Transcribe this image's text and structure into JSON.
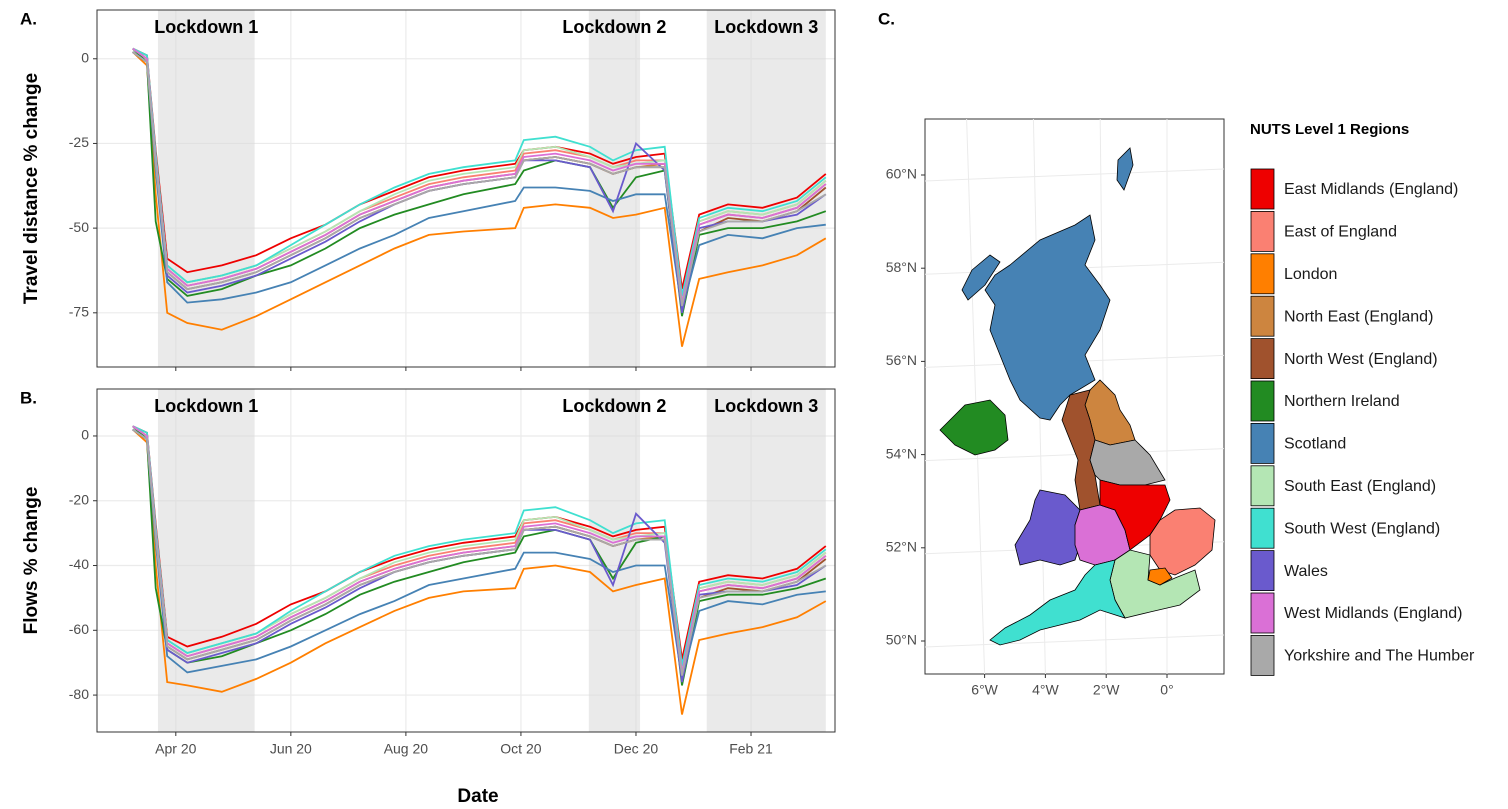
{
  "chart_data": [
    {
      "type": "line",
      "panel": "A.",
      "y_label": "Travel distance % change",
      "xlim": [
        1.63,
        14.46
      ],
      "ylim": [
        -91,
        14.4
      ],
      "yticks": [
        -75,
        -50,
        -25,
        0
      ],
      "grid": true,
      "shaded_periods": [
        {
          "label": "Lockdown 1",
          "x": [
            2.69,
            4.37
          ]
        },
        {
          "label": "Lockdown 2",
          "x": [
            10.18,
            11.07
          ]
        },
        {
          "label": "Lockdown 3",
          "x": [
            12.23,
            14.3
          ]
        }
      ],
      "x": [
        2.25,
        2.5,
        2.65,
        2.85,
        3.2,
        3.8,
        4.4,
        5.0,
        5.6,
        6.2,
        6.8,
        7.4,
        8.0,
        8.9,
        9.05,
        9.6,
        10.2,
        10.6,
        11.0,
        11.5,
        11.8,
        12.1,
        12.6,
        13.2,
        13.8,
        14.3
      ],
      "series": [
        {
          "name": "East Midlands (England)",
          "color": "#ee0000",
          "values": [
            3,
            1,
            -27,
            -59,
            -63,
            -61,
            -58,
            -53,
            -49,
            -43,
            -39,
            -35,
            -33,
            -31,
            -27,
            -26,
            -28,
            -31,
            -29,
            -28,
            -68,
            -46,
            -43,
            -44,
            -41,
            -34
          ]
        },
        {
          "name": "East of England",
          "color": "#fa8072",
          "values": [
            3,
            0,
            -29,
            -61,
            -66,
            -64,
            -61,
            -56,
            -51,
            -45,
            -41,
            -37,
            -35,
            -33,
            -28,
            -27,
            -29,
            -32,
            -30,
            -30,
            -71,
            -48,
            -45,
            -46,
            -43,
            -36
          ]
        },
        {
          "name": "London",
          "color": "#ff7f00",
          "values": [
            2,
            -2,
            -40,
            -75,
            -78,
            -80,
            -76,
            -71,
            -66,
            -61,
            -56,
            -52,
            -51,
            -50,
            -44,
            -43,
            -44,
            -47,
            -46,
            -44,
            -85,
            -65,
            -63,
            -61,
            -58,
            -53
          ]
        },
        {
          "name": "North East (England)",
          "color": "#cd853f",
          "values": [
            3,
            0,
            -30,
            -62,
            -67,
            -65,
            -62,
            -57,
            -52,
            -46,
            -42,
            -38,
            -36,
            -34,
            -30,
            -29,
            -31,
            -34,
            -32,
            -31,
            -72,
            -49,
            -46,
            -47,
            -44,
            -37
          ]
        },
        {
          "name": "North West (England)",
          "color": "#a0522d",
          "values": [
            2,
            -1,
            -31,
            -63,
            -68,
            -66,
            -63,
            -58,
            -53,
            -47,
            -43,
            -39,
            -37,
            -35,
            -30,
            -29,
            -31,
            -34,
            -32,
            -32,
            -73,
            -51,
            -47,
            -48,
            -45,
            -38
          ]
        },
        {
          "name": "Northern Ireland",
          "color": "#228b22",
          "values": [
            3,
            -1,
            -48,
            -65,
            -70,
            -68,
            -64,
            -61,
            -56,
            -50,
            -46,
            -43,
            -40,
            -37,
            -33,
            -30,
            -32,
            -44,
            -35,
            -33,
            -76,
            -52,
            -50,
            -50,
            -48,
            -45
          ]
        },
        {
          "name": "Scotland",
          "color": "#4682b4",
          "values": [
            2,
            -1,
            -33,
            -66,
            -72,
            -71,
            -69,
            -66,
            -61,
            -56,
            -52,
            -47,
            -45,
            -42,
            -38,
            -38,
            -39,
            -42,
            -40,
            -40,
            -74,
            -55,
            -52,
            -53,
            -50,
            -49
          ]
        },
        {
          "name": "South East (England)",
          "color": "#b4e6b4",
          "values": [
            3,
            0,
            -29,
            -61,
            -66,
            -64,
            -61,
            -56,
            -51,
            -45,
            -40,
            -36,
            -34,
            -32,
            -27,
            -26,
            -29,
            -32,
            -31,
            -30,
            -71,
            -48,
            -45,
            -46,
            -43,
            -36
          ]
        },
        {
          "name": "South West (England)",
          "color": "#40e0d0",
          "values": [
            3,
            1,
            -28,
            -61,
            -66,
            -64,
            -61,
            -55,
            -49,
            -43,
            -38,
            -34,
            -32,
            -30,
            -24,
            -23,
            -26,
            -30,
            -27,
            -26,
            -70,
            -47,
            -44,
            -45,
            -42,
            -35
          ]
        },
        {
          "name": "Wales",
          "color": "#6a5acd",
          "values": [
            2,
            -1,
            -31,
            -64,
            -69,
            -67,
            -64,
            -59,
            -54,
            -48,
            -43,
            -39,
            -37,
            -35,
            -30,
            -30,
            -32,
            -45,
            -25,
            -33,
            -75,
            -50,
            -48,
            -48,
            -46,
            -40
          ]
        },
        {
          "name": "West Midlands (England)",
          "color": "#da70d6",
          "values": [
            3,
            0,
            -30,
            -62,
            -67,
            -65,
            -62,
            -57,
            -52,
            -46,
            -42,
            -38,
            -36,
            -34,
            -29,
            -28,
            -30,
            -33,
            -31,
            -31,
            -72,
            -49,
            -46,
            -47,
            -44,
            -37
          ]
        },
        {
          "name": "Yorkshire and The Humber",
          "color": "#a9a9a9",
          "values": [
            2,
            -1,
            -31,
            -63,
            -68,
            -66,
            -63,
            -58,
            -53,
            -47,
            -43,
            -39,
            -37,
            -35,
            -30,
            -29,
            -31,
            -34,
            -32,
            -32,
            -73,
            -51,
            -48,
            -48,
            -45,
            -40
          ]
        }
      ]
    },
    {
      "type": "line",
      "panel": "B.",
      "y_label": "Flows % change",
      "x_label": "Date",
      "xlim": [
        1.63,
        14.46
      ],
      "ylim": [
        -91.4,
        14.5
      ],
      "yticks": [
        -80,
        -60,
        -40,
        -20,
        0
      ],
      "grid": true,
      "xticks": [
        {
          "value": 3,
          "label": "Apr 20"
        },
        {
          "value": 5,
          "label": "Jun 20"
        },
        {
          "value": 7,
          "label": "Aug 20"
        },
        {
          "value": 9,
          "label": "Oct 20"
        },
        {
          "value": 11,
          "label": "Dec 20"
        },
        {
          "value": 13,
          "label": "Feb 21"
        }
      ],
      "shaded_periods": [
        {
          "label": "Lockdown 1",
          "x": [
            2.69,
            4.37
          ]
        },
        {
          "label": "Lockdown 2",
          "x": [
            10.18,
            11.07
          ]
        },
        {
          "label": "Lockdown 3",
          "x": [
            12.23,
            14.3
          ]
        }
      ],
      "x": [
        2.25,
        2.5,
        2.65,
        2.85,
        3.2,
        3.8,
        4.4,
        5.0,
        5.6,
        6.2,
        6.8,
        7.4,
        8.0,
        8.9,
        9.05,
        9.6,
        10.2,
        10.6,
        11.0,
        11.5,
        11.8,
        12.1,
        12.6,
        13.2,
        13.8,
        14.3
      ],
      "series": [
        {
          "color": "#ee0000",
          "values": [
            3,
            1,
            -27,
            -62,
            -65,
            -62,
            -58,
            -52,
            -48,
            -42,
            -38,
            -35,
            -33,
            -31,
            -26,
            -25,
            -28,
            -31,
            -29,
            -28,
            -69,
            -45,
            -43,
            -44,
            -41,
            -34
          ]
        },
        {
          "color": "#fa8072",
          "values": [
            3,
            0,
            -29,
            -63,
            -67,
            -64,
            -61,
            -55,
            -50,
            -44,
            -40,
            -37,
            -35,
            -33,
            -27,
            -26,
            -29,
            -32,
            -30,
            -30,
            -72,
            -47,
            -45,
            -46,
            -43,
            -36
          ]
        },
        {
          "color": "#ff7f00",
          "values": [
            2,
            -2,
            -40,
            -76,
            -77,
            -79,
            -75,
            -70,
            -64,
            -59,
            -54,
            -50,
            -48,
            -47,
            -41,
            -40,
            -42,
            -48,
            -46,
            -44,
            -86,
            -63,
            -61,
            -59,
            -56,
            -51
          ]
        },
        {
          "color": "#cd853f",
          "values": [
            3,
            0,
            -30,
            -64,
            -68,
            -65,
            -62,
            -56,
            -51,
            -45,
            -41,
            -38,
            -36,
            -34,
            -29,
            -28,
            -31,
            -34,
            -32,
            -31,
            -73,
            -48,
            -46,
            -47,
            -44,
            -37
          ]
        },
        {
          "color": "#a0522d",
          "values": [
            2,
            -1,
            -31,
            -65,
            -69,
            -66,
            -63,
            -57,
            -52,
            -46,
            -42,
            -39,
            -37,
            -35,
            -29,
            -28,
            -31,
            -34,
            -32,
            -32,
            -74,
            -50,
            -47,
            -48,
            -45,
            -38
          ]
        },
        {
          "color": "#228b22",
          "values": [
            3,
            -1,
            -47,
            -66,
            -70,
            -68,
            -64,
            -60,
            -55,
            -49,
            -45,
            -42,
            -39,
            -36,
            -31,
            -29,
            -32,
            -44,
            -33,
            -31,
            -77,
            -51,
            -49,
            -49,
            -47,
            -44
          ]
        },
        {
          "color": "#4682b4",
          "values": [
            2,
            -1,
            -33,
            -68,
            -73,
            -71,
            -69,
            -65,
            -60,
            -55,
            -51,
            -46,
            -44,
            -41,
            -36,
            -36,
            -38,
            -42,
            -40,
            -40,
            -75,
            -54,
            -51,
            -52,
            -49,
            -48
          ]
        },
        {
          "color": "#b4e6b4",
          "values": [
            3,
            0,
            -29,
            -63,
            -67,
            -64,
            -61,
            -55,
            -50,
            -44,
            -39,
            -36,
            -34,
            -32,
            -26,
            -25,
            -29,
            -32,
            -31,
            -30,
            -72,
            -47,
            -45,
            -46,
            -43,
            -36
          ]
        },
        {
          "color": "#40e0d0",
          "values": [
            3,
            1,
            -28,
            -63,
            -67,
            -64,
            -61,
            -54,
            -48,
            -42,
            -37,
            -34,
            -32,
            -30,
            -23,
            -22,
            -26,
            -30,
            -27,
            -26,
            -71,
            -46,
            -44,
            -45,
            -42,
            -35
          ]
        },
        {
          "color": "#6a5acd",
          "values": [
            2,
            -1,
            -31,
            -66,
            -70,
            -67,
            -64,
            -58,
            -53,
            -47,
            -42,
            -39,
            -37,
            -35,
            -29,
            -29,
            -32,
            -46,
            -24,
            -33,
            -76,
            -49,
            -48,
            -48,
            -46,
            -40
          ]
        },
        {
          "color": "#da70d6",
          "values": [
            3,
            0,
            -30,
            -64,
            -68,
            -65,
            -62,
            -56,
            -51,
            -45,
            -41,
            -38,
            -36,
            -34,
            -28,
            -27,
            -30,
            -33,
            -31,
            -31,
            -73,
            -48,
            -46,
            -47,
            -44,
            -37
          ]
        },
        {
          "color": "#a9a9a9",
          "values": [
            2,
            -1,
            -31,
            -65,
            -69,
            -66,
            -63,
            -57,
            -52,
            -46,
            -42,
            -39,
            -37,
            -35,
            -29,
            -28,
            -31,
            -34,
            -32,
            -32,
            -74,
            -50,
            -48,
            -48,
            -45,
            -40
          ]
        }
      ]
    }
  ],
  "map": {
    "panel": "C.",
    "legend_title": "NUTS Level 1 Regions",
    "lat_ticks": [
      {
        "value": 50,
        "label": "50°N"
      },
      {
        "value": 52,
        "label": "52°N"
      },
      {
        "value": 54,
        "label": "54°N"
      },
      {
        "value": 56,
        "label": "56°N"
      },
      {
        "value": 58,
        "label": "58°N"
      },
      {
        "value": 60,
        "label": "60°N"
      }
    ],
    "lon_ticks": [
      {
        "value": -6,
        "label": "6°W"
      },
      {
        "value": -4,
        "label": "4°W"
      },
      {
        "value": -2,
        "label": "2°W"
      },
      {
        "value": 0,
        "label": "0°"
      }
    ]
  }
}
